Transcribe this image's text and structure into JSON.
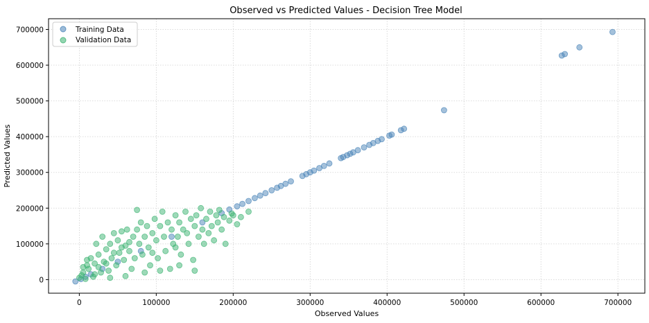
{
  "chart_data": {
    "type": "scatter",
    "title": "Observed vs Predicted Values - Decision Tree Model",
    "xlabel": "Observed Values",
    "ylabel": "Predicted Values",
    "xlim": [
      -40000,
      735000
    ],
    "ylim": [
      -38000,
      730000
    ],
    "xticks": [
      0,
      100000,
      200000,
      300000,
      400000,
      500000,
      600000,
      700000
    ],
    "yticks": [
      0,
      100000,
      200000,
      300000,
      400000,
      500000,
      600000,
      700000
    ],
    "grid": true,
    "legend_position": "top-left",
    "series": [
      {
        "name": "Training Data",
        "color": "#4a84b8",
        "points": [
          [
            -5000,
            -5000
          ],
          [
            2000,
            1500
          ],
          [
            8000,
            8000
          ],
          [
            15000,
            15000
          ],
          [
            30000,
            30000
          ],
          [
            50000,
            50000
          ],
          [
            80000,
            80000
          ],
          [
            120000,
            120000
          ],
          [
            160000,
            160000
          ],
          [
            185000,
            186000
          ],
          [
            195000,
            196000
          ],
          [
            205000,
            205000
          ],
          [
            212000,
            212000
          ],
          [
            220000,
            220000
          ],
          [
            228000,
            228000
          ],
          [
            235000,
            235000
          ],
          [
            242000,
            242000
          ],
          [
            250000,
            250000
          ],
          [
            257000,
            257000
          ],
          [
            262000,
            262000
          ],
          [
            268000,
            268000
          ],
          [
            275000,
            275000
          ],
          [
            290000,
            290000
          ],
          [
            295000,
            295000
          ],
          [
            300000,
            300000
          ],
          [
            305000,
            305000
          ],
          [
            312000,
            312000
          ],
          [
            318000,
            318000
          ],
          [
            325000,
            325000
          ],
          [
            340000,
            340000
          ],
          [
            343000,
            343000
          ],
          [
            348000,
            348000
          ],
          [
            352000,
            352000
          ],
          [
            356000,
            356000
          ],
          [
            362000,
            362000
          ],
          [
            370000,
            370000
          ],
          [
            377000,
            377000
          ],
          [
            382000,
            382000
          ],
          [
            388000,
            388000
          ],
          [
            393000,
            393000
          ],
          [
            403000,
            403000
          ],
          [
            406000,
            406000
          ],
          [
            418000,
            418000
          ],
          [
            422000,
            422000
          ],
          [
            474000,
            474000
          ],
          [
            627000,
            627000
          ],
          [
            631000,
            631000
          ],
          [
            650000,
            650000
          ],
          [
            693000,
            693000
          ]
        ]
      },
      {
        "name": "Validation Data",
        "color": "#3cb371",
        "points": [
          [
            0,
            5000
          ],
          [
            3000,
            12000
          ],
          [
            5000,
            20000
          ],
          [
            8000,
            2000
          ],
          [
            10000,
            40000
          ],
          [
            12000,
            30000
          ],
          [
            15000,
            60000
          ],
          [
            18000,
            8000
          ],
          [
            20000,
            45000
          ],
          [
            22000,
            100000
          ],
          [
            25000,
            70000
          ],
          [
            28000,
            20000
          ],
          [
            30000,
            120000
          ],
          [
            32000,
            50000
          ],
          [
            35000,
            85000
          ],
          [
            38000,
            25000
          ],
          [
            40000,
            100000
          ],
          [
            42000,
            60000
          ],
          [
            45000,
            130000
          ],
          [
            48000,
            40000
          ],
          [
            50000,
            110000
          ],
          [
            52000,
            75000
          ],
          [
            55000,
            135000
          ],
          [
            58000,
            55000
          ],
          [
            60000,
            95000
          ],
          [
            62000,
            140000
          ],
          [
            65000,
            80000
          ],
          [
            68000,
            30000
          ],
          [
            70000,
            120000
          ],
          [
            72000,
            60000
          ],
          [
            75000,
            140000
          ],
          [
            78000,
            100000
          ],
          [
            80000,
            160000
          ],
          [
            82000,
            70000
          ],
          [
            85000,
            120000
          ],
          [
            88000,
            150000
          ],
          [
            90000,
            90000
          ],
          [
            92000,
            40000
          ],
          [
            95000,
            130000
          ],
          [
            98000,
            170000
          ],
          [
            100000,
            110000
          ],
          [
            102000,
            60000
          ],
          [
            105000,
            150000
          ],
          [
            108000,
            190000
          ],
          [
            110000,
            120000
          ],
          [
            112000,
            80000
          ],
          [
            115000,
            160000
          ],
          [
            118000,
            30000
          ],
          [
            120000,
            140000
          ],
          [
            122000,
            100000
          ],
          [
            125000,
            180000
          ],
          [
            128000,
            120000
          ],
          [
            130000,
            160000
          ],
          [
            132000,
            70000
          ],
          [
            135000,
            140000
          ],
          [
            138000,
            190000
          ],
          [
            140000,
            130000
          ],
          [
            142000,
            100000
          ],
          [
            145000,
            170000
          ],
          [
            148000,
            55000
          ],
          [
            150000,
            150000
          ],
          [
            152000,
            180000
          ],
          [
            155000,
            120000
          ],
          [
            158000,
            200000
          ],
          [
            160000,
            140000
          ],
          [
            162000,
            100000
          ],
          [
            165000,
            170000
          ],
          [
            168000,
            130000
          ],
          [
            170000,
            190000
          ],
          [
            172000,
            150000
          ],
          [
            175000,
            110000
          ],
          [
            178000,
            180000
          ],
          [
            180000,
            160000
          ],
          [
            182000,
            195000
          ],
          [
            185000,
            140000
          ],
          [
            188000,
            175000
          ],
          [
            190000,
            100000
          ],
          [
            195000,
            165000
          ],
          [
            198000,
            185000
          ],
          [
            200000,
            180000
          ],
          [
            205000,
            155000
          ],
          [
            210000,
            175000
          ],
          [
            220000,
            190000
          ],
          [
            85000,
            20000
          ],
          [
            105000,
            25000
          ],
          [
            130000,
            40000
          ],
          [
            60000,
            10000
          ],
          [
            40000,
            5000
          ],
          [
            150000,
            25000
          ],
          [
            75000,
            195000
          ],
          [
            5000,
            35000
          ],
          [
            10000,
            55000
          ],
          [
            20000,
            15000
          ],
          [
            25000,
            35000
          ],
          [
            35000,
            45000
          ],
          [
            45000,
            75000
          ],
          [
            55000,
            90000
          ],
          [
            65000,
            105000
          ],
          [
            95000,
            75000
          ],
          [
            125000,
            90000
          ]
        ]
      }
    ]
  }
}
